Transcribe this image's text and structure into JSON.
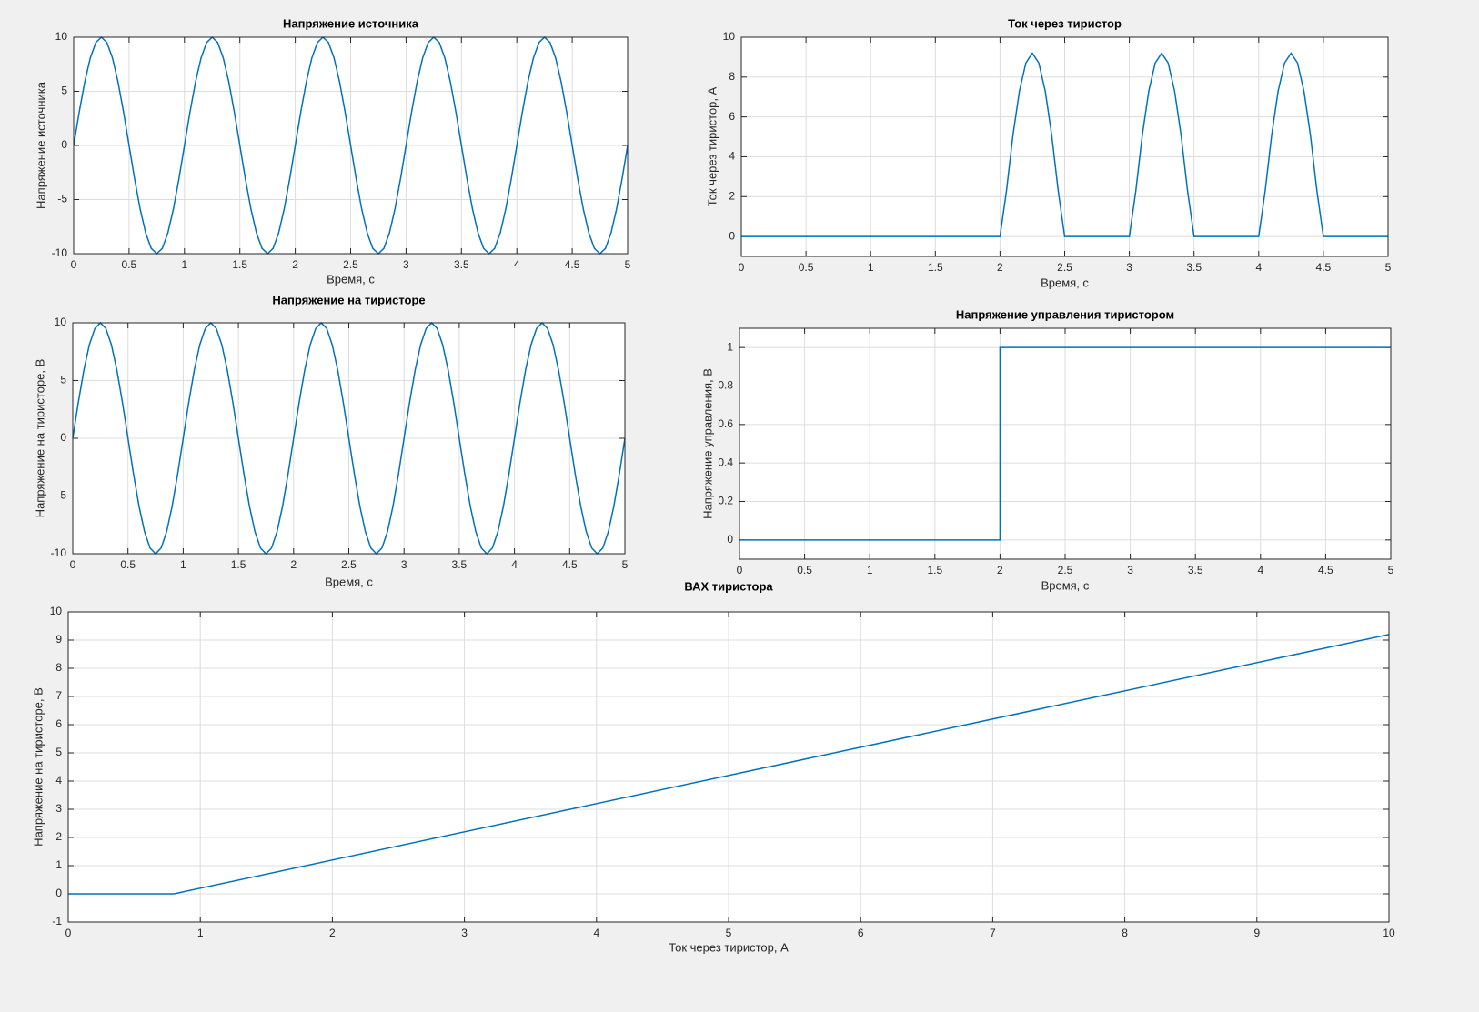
{
  "chart_data": [
    {
      "type": "line",
      "title": "Напряжение источника",
      "x_label": "Время, с",
      "y_label": "Напряжение источника",
      "color": "#0072bd",
      "grid": true,
      "xlim": [
        0,
        5
      ],
      "xticks": [
        0,
        0.5,
        1,
        1.5,
        2,
        2.5,
        3,
        3.5,
        4,
        4.5,
        5
      ],
      "ylim": [
        -10,
        10
      ],
      "yticks": [
        -10,
        -5,
        0,
        5,
        10
      ],
      "x": [
        0,
        0.05,
        0.1,
        0.15,
        0.2,
        0.25,
        0.3,
        0.35,
        0.4,
        0.45,
        0.5,
        0.55,
        0.6,
        0.65,
        0.7,
        0.75,
        0.8,
        0.85,
        0.9,
        0.95,
        1,
        1.05,
        1.1,
        1.15,
        1.2,
        1.25,
        1.3,
        1.35,
        1.4,
        1.45,
        1.5,
        1.55,
        1.6,
        1.65,
        1.7,
        1.75,
        1.8,
        1.85,
        1.9,
        1.95,
        2,
        2.05,
        2.1,
        2.15,
        2.2,
        2.25,
        2.3,
        2.35,
        2.4,
        2.45,
        2.5,
        2.55,
        2.6,
        2.65,
        2.7,
        2.75,
        2.8,
        2.85,
        2.9,
        2.95,
        3,
        3.05,
        3.1,
        3.15,
        3.2,
        3.25,
        3.3,
        3.35,
        3.4,
        3.45,
        3.5,
        3.55,
        3.6,
        3.65,
        3.7,
        3.75,
        3.8,
        3.85,
        3.9,
        3.95,
        4,
        4.05,
        4.1,
        4.15,
        4.2,
        4.25,
        4.3,
        4.35,
        4.4,
        4.45,
        4.5,
        4.55,
        4.6,
        4.65,
        4.7,
        4.75,
        4.8,
        4.85,
        4.9,
        4.95,
        5
      ],
      "values": [
        0,
        3.09,
        5.88,
        8.09,
        9.51,
        10,
        9.51,
        8.09,
        5.88,
        3.09,
        0,
        -3.09,
        -5.88,
        -8.09,
        -9.51,
        -10,
        -9.51,
        -8.09,
        -5.88,
        -3.09,
        0,
        3.09,
        5.88,
        8.09,
        9.51,
        10,
        9.51,
        8.09,
        5.88,
        3.09,
        0,
        -3.09,
        -5.88,
        -8.09,
        -9.51,
        -10,
        -9.51,
        -8.09,
        -5.88,
        -3.09,
        0,
        3.09,
        5.88,
        8.09,
        9.51,
        10,
        9.51,
        8.09,
        5.88,
        3.09,
        0,
        -3.09,
        -5.88,
        -8.09,
        -9.51,
        -10,
        -9.51,
        -8.09,
        -5.88,
        -3.09,
        0,
        3.09,
        5.88,
        8.09,
        9.51,
        10,
        9.51,
        8.09,
        5.88,
        3.09,
        0,
        -3.09,
        -5.88,
        -8.09,
        -9.51,
        -10,
        -9.51,
        -8.09,
        -5.88,
        -3.09,
        0,
        3.09,
        5.88,
        8.09,
        9.51,
        10,
        9.51,
        8.09,
        5.88,
        3.09,
        0,
        -3.09,
        -5.88,
        -8.09,
        -9.51,
        -10,
        -9.51,
        -8.09,
        -5.88,
        -3.09,
        0
      ]
    },
    {
      "type": "line",
      "title": "Ток через тиристор",
      "x_label": "Время, с",
      "y_label": "Ток через тиристор, А",
      "color": "#0072bd",
      "grid": true,
      "xlim": [
        0,
        5
      ],
      "xticks": [
        0,
        0.5,
        1,
        1.5,
        2,
        2.5,
        3,
        3.5,
        4,
        4.5,
        5
      ],
      "ylim": [
        -1,
        10
      ],
      "yticks": [
        0,
        2,
        4,
        6,
        8,
        10
      ],
      "x": [
        0,
        0.05,
        0.1,
        0.15,
        0.2,
        0.25,
        0.3,
        0.35,
        0.4,
        0.45,
        0.5,
        0.55,
        0.6,
        0.65,
        0.7,
        0.75,
        0.8,
        0.85,
        0.9,
        0.95,
        1,
        1.05,
        1.1,
        1.15,
        1.2,
        1.25,
        1.3,
        1.35,
        1.4,
        1.45,
        1.5,
        1.55,
        1.6,
        1.65,
        1.7,
        1.75,
        1.8,
        1.85,
        1.9,
        1.95,
        2,
        2.05,
        2.1,
        2.15,
        2.2,
        2.25,
        2.3,
        2.35,
        2.4,
        2.45,
        2.5,
        2.55,
        2.6,
        2.65,
        2.7,
        2.75,
        2.8,
        2.85,
        2.9,
        2.95,
        3,
        3.05,
        3.1,
        3.15,
        3.2,
        3.25,
        3.3,
        3.35,
        3.4,
        3.45,
        3.5,
        3.55,
        3.6,
        3.65,
        3.7,
        3.75,
        3.8,
        3.85,
        3.9,
        3.95,
        4,
        4.05,
        4.1,
        4.15,
        4.2,
        4.25,
        4.3,
        4.35,
        4.4,
        4.45,
        4.5,
        4.55,
        4.6,
        4.65,
        4.7,
        4.75,
        4.8,
        4.85,
        4.9,
        4.95,
        5
      ],
      "values": [
        0,
        0,
        0,
        0,
        0,
        0,
        0,
        0,
        0,
        0,
        0,
        0,
        0,
        0,
        0,
        0,
        0,
        0,
        0,
        0,
        0,
        0,
        0,
        0,
        0,
        0,
        0,
        0,
        0,
        0,
        0,
        0,
        0,
        0,
        0,
        0,
        0,
        0,
        0,
        0,
        0,
        2.29,
        5.08,
        7.29,
        8.71,
        9.2,
        8.71,
        7.29,
        5.08,
        2.29,
        0,
        0,
        0,
        0,
        0,
        0,
        0,
        0,
        0,
        0,
        0,
        2.29,
        5.08,
        7.29,
        8.71,
        9.2,
        8.71,
        7.29,
        5.08,
        2.29,
        0,
        0,
        0,
        0,
        0,
        0,
        0,
        0,
        0,
        0,
        0,
        2.29,
        5.08,
        7.29,
        8.71,
        9.2,
        8.71,
        7.29,
        5.08,
        2.29,
        0,
        0,
        0,
        0,
        0,
        0,
        0,
        0,
        0,
        0,
        0
      ]
    },
    {
      "type": "line",
      "title": "Напряжение на тиристоре",
      "x_label": "Время, с",
      "y_label": "Напряжение на тиристоре, В",
      "color": "#0072bd",
      "grid": true,
      "xlim": [
        0,
        5
      ],
      "xticks": [
        0,
        0.5,
        1,
        1.5,
        2,
        2.5,
        3,
        3.5,
        4,
        4.5,
        5
      ],
      "ylim": [
        -10,
        10
      ],
      "yticks": [
        -10,
        -5,
        0,
        5,
        10
      ],
      "x": [
        0,
        0.05,
        0.1,
        0.15,
        0.2,
        0.25,
        0.3,
        0.35,
        0.4,
        0.45,
        0.5,
        0.55,
        0.6,
        0.65,
        0.7,
        0.75,
        0.8,
        0.85,
        0.9,
        0.95,
        1,
        1.05,
        1.1,
        1.15,
        1.2,
        1.25,
        1.3,
        1.35,
        1.4,
        1.45,
        1.5,
        1.55,
        1.6,
        1.65,
        1.7,
        1.75,
        1.8,
        1.85,
        1.9,
        1.95,
        2,
        2.05,
        2.1,
        2.15,
        2.2,
        2.25,
        2.3,
        2.35,
        2.4,
        2.45,
        2.5,
        2.55,
        2.6,
        2.65,
        2.7,
        2.75,
        2.8,
        2.85,
        2.9,
        2.95,
        3,
        3.05,
        3.1,
        3.15,
        3.2,
        3.25,
        3.3,
        3.35,
        3.4,
        3.45,
        3.5,
        3.55,
        3.6,
        3.65,
        3.7,
        3.75,
        3.8,
        3.85,
        3.9,
        3.95,
        4,
        4.05,
        4.1,
        4.15,
        4.2,
        4.25,
        4.3,
        4.35,
        4.4,
        4.45,
        4.5,
        4.55,
        4.6,
        4.65,
        4.7,
        4.75,
        4.8,
        4.85,
        4.9,
        4.95,
        5
      ],
      "values": [
        0,
        3.09,
        5.88,
        8.09,
        9.51,
        10,
        9.51,
        8.09,
        5.88,
        3.09,
        0,
        -3.09,
        -5.88,
        -8.09,
        -9.51,
        -10,
        -9.51,
        -8.09,
        -5.88,
        -3.09,
        0,
        3.09,
        5.88,
        8.09,
        9.51,
        10,
        9.51,
        8.09,
        5.88,
        3.09,
        0,
        -3.09,
        -5.88,
        -8.09,
        -9.51,
        -10,
        -9.51,
        -8.09,
        -5.88,
        -3.09,
        0,
        3.09,
        5.88,
        8.09,
        9.51,
        10,
        9.51,
        8.09,
        5.88,
        3.09,
        0,
        -3.09,
        -5.88,
        -8.09,
        -9.51,
        -10,
        -9.51,
        -8.09,
        -5.88,
        -3.09,
        0,
        3.09,
        5.88,
        8.09,
        9.51,
        10,
        9.51,
        8.09,
        5.88,
        3.09,
        0,
        -3.09,
        -5.88,
        -8.09,
        -9.51,
        -10,
        -9.51,
        -8.09,
        -5.88,
        -3.09,
        0,
        3.09,
        5.88,
        8.09,
        9.51,
        10,
        9.51,
        8.09,
        5.88,
        3.09,
        0,
        -3.09,
        -5.88,
        -8.09,
        -9.51,
        -10,
        -9.51,
        -8.09,
        -5.88,
        -3.09,
        0
      ]
    },
    {
      "type": "line",
      "title": "Напряжение управления тиристором",
      "x_label": "Время, с",
      "y_label": "Напряжение управления, В",
      "color": "#0072bd",
      "grid": true,
      "xlim": [
        0,
        5
      ],
      "xticks": [
        0,
        0.5,
        1,
        1.5,
        2,
        2.5,
        3,
        3.5,
        4,
        4.5,
        5
      ],
      "ylim": [
        -0.1,
        1.1
      ],
      "yticks": [
        0,
        0.2,
        0.4,
        0.6,
        0.8,
        1
      ],
      "x": [
        0,
        2,
        2,
        5
      ],
      "values": [
        0,
        0,
        1,
        1
      ]
    },
    {
      "type": "line",
      "title": "ВАХ тиристора",
      "x_label": "Ток через тиристор, А",
      "y_label": "Напряжение на тиристоре, В",
      "color": "#0072bd",
      "grid": true,
      "xlim": [
        0,
        10
      ],
      "xticks": [
        0,
        1,
        2,
        3,
        4,
        5,
        6,
        7,
        8,
        9,
        10
      ],
      "ylim": [
        -1,
        10
      ],
      "yticks": [
        -1,
        0,
        1,
        2,
        3,
        4,
        5,
        6,
        7,
        8,
        9,
        10
      ],
      "x": [
        0,
        0.8,
        10
      ],
      "values": [
        0,
        0,
        9.2
      ]
    }
  ]
}
